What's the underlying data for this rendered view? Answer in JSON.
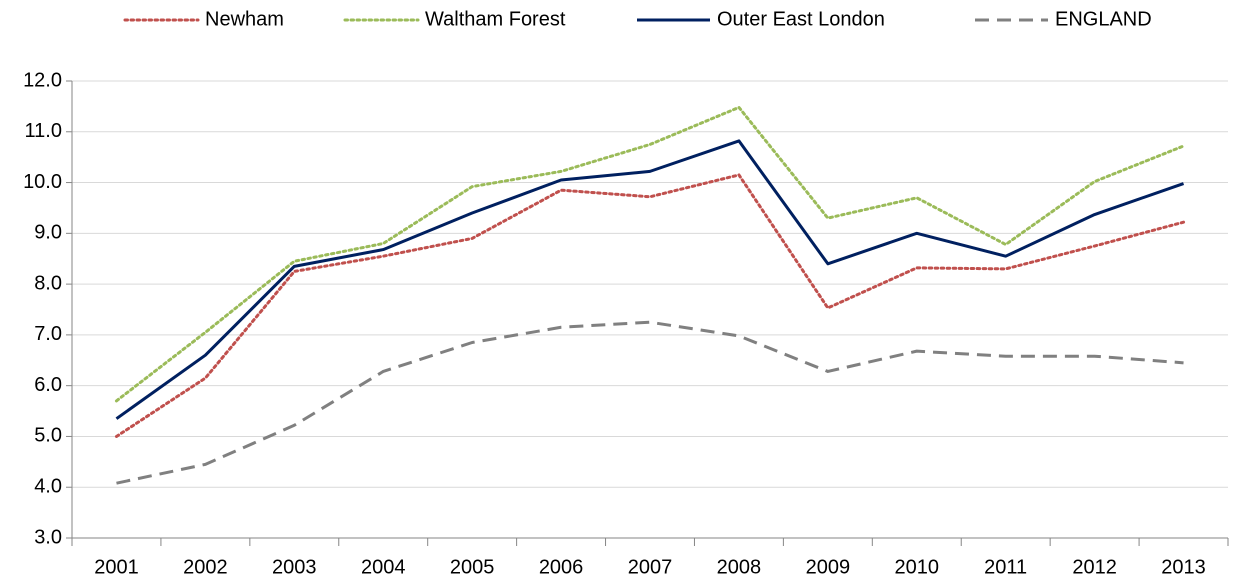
{
  "chart_data": {
    "type": "line",
    "categories": [
      "2001",
      "2002",
      "2003",
      "2004",
      "2005",
      "2006",
      "2007",
      "2008",
      "2009",
      "2010",
      "2011",
      "2012",
      "2013"
    ],
    "series": [
      {
        "name": "Newham",
        "color": "#c0504d",
        "style": "dotted",
        "values": [
          5.0,
          6.15,
          8.25,
          8.55,
          8.9,
          9.85,
          9.72,
          10.15,
          7.53,
          8.32,
          8.3,
          8.75,
          9.22
        ]
      },
      {
        "name": "Waltham Forest",
        "color": "#9bbb59",
        "style": "dotted",
        "values": [
          5.7,
          7.05,
          8.45,
          8.8,
          9.92,
          10.22,
          10.75,
          11.48,
          9.3,
          9.7,
          8.78,
          10.02,
          10.72
        ]
      },
      {
        "name": "Outer East London",
        "color": "#002060",
        "style": "solid",
        "values": [
          5.35,
          6.6,
          8.35,
          8.68,
          9.4,
          10.05,
          10.22,
          10.82,
          8.4,
          9.0,
          8.55,
          9.37,
          9.98
        ]
      },
      {
        "name": "ENGLAND",
        "color": "#808080",
        "style": "dashed",
        "values": [
          4.08,
          4.45,
          5.22,
          6.28,
          6.85,
          7.15,
          7.25,
          6.98,
          6.28,
          6.68,
          6.58,
          6.58,
          6.45
        ]
      }
    ],
    "ylim": [
      3,
      12
    ],
    "yticks": [
      {
        "value": 3,
        "label": "3.0"
      },
      {
        "value": 4,
        "label": "4.0"
      },
      {
        "value": 5,
        "label": "5.0"
      },
      {
        "value": 6,
        "label": "6.0"
      },
      {
        "value": 7,
        "label": "7.0"
      },
      {
        "value": 8,
        "label": "8.0"
      },
      {
        "value": 9,
        "label": "9.0"
      },
      {
        "value": 10,
        "label": "10.0"
      },
      {
        "value": 11,
        "label": "11.0"
      },
      {
        "value": 12,
        "label": "12.0"
      }
    ],
    "grid": true,
    "legend": "top"
  }
}
